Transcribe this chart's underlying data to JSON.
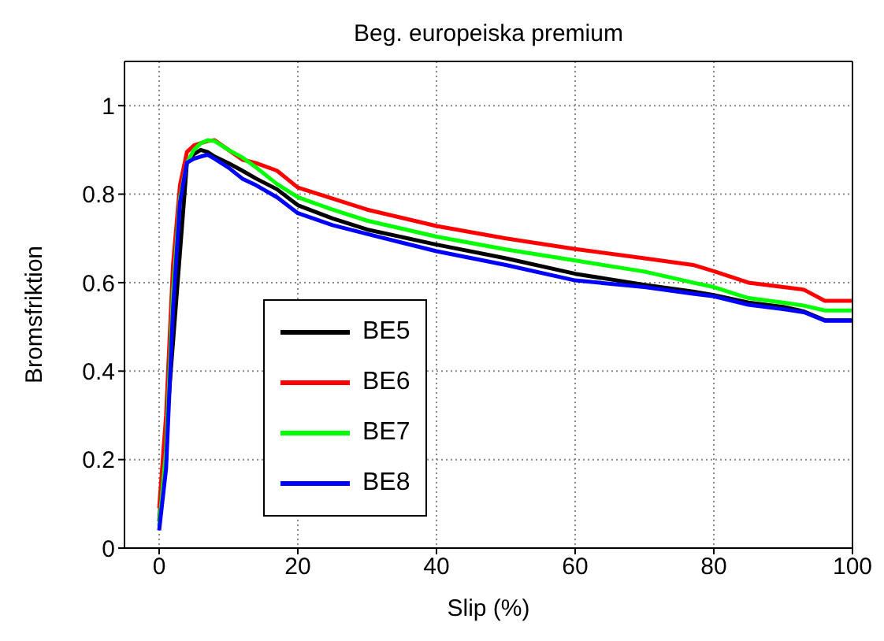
{
  "chart_data": {
    "type": "line",
    "title": "Beg. europeiska premium",
    "xlabel": "Slip (%)",
    "ylabel": "Bromsfriktion",
    "x": [
      0,
      1,
      2,
      3,
      4,
      5,
      6,
      7,
      8,
      10,
      12,
      14,
      17,
      20,
      25,
      30,
      40,
      50,
      60,
      70,
      77,
      80,
      85,
      90,
      93,
      96,
      100
    ],
    "series": [
      {
        "name": "BE5",
        "color": "#000000",
        "values": [
          0.06,
          null,
          null,
          null,
          0.87,
          0.89,
          0.9,
          0.895,
          0.885,
          0.87,
          0.853,
          0.835,
          0.811,
          0.775,
          0.745,
          0.72,
          0.686,
          0.655,
          0.62,
          0.595,
          0.58,
          0.572,
          0.555,
          0.545,
          0.535,
          0.515,
          0.515
        ]
      },
      {
        "name": "BE6",
        "color": "#ff0000",
        "values": [
          0.09,
          0.3,
          0.64,
          0.82,
          0.895,
          0.91,
          0.915,
          0.92,
          0.922,
          0.9,
          0.878,
          0.87,
          0.853,
          0.815,
          0.79,
          0.765,
          0.728,
          0.7,
          0.676,
          0.655,
          0.64,
          0.626,
          0.6,
          0.59,
          0.584,
          0.559,
          0.559
        ]
      },
      {
        "name": "BE7",
        "color": "#00ff00",
        "values": [
          0.05,
          0.22,
          0.58,
          0.79,
          0.87,
          0.9,
          0.915,
          0.922,
          0.92,
          0.9,
          0.883,
          0.86,
          0.823,
          0.793,
          0.765,
          0.74,
          0.704,
          0.675,
          0.65,
          0.625,
          0.6,
          0.59,
          0.565,
          0.555,
          0.548,
          0.537,
          0.537
        ]
      },
      {
        "name": "BE8",
        "color": "#0000ff",
        "values": [
          0.04,
          0.18,
          0.54,
          0.78,
          0.871,
          0.88,
          0.885,
          0.889,
          0.88,
          0.86,
          0.835,
          0.82,
          0.793,
          0.757,
          0.73,
          0.71,
          0.671,
          0.64,
          0.605,
          0.59,
          0.575,
          0.569,
          0.55,
          0.54,
          0.533,
          0.514,
          0.514
        ]
      }
    ],
    "xlim": [
      -5,
      100
    ],
    "xticks": [
      0,
      20,
      40,
      60,
      80,
      100
    ],
    "ylim": [
      0,
      1.1
    ],
    "yticks": [
      0,
      0.2,
      0.4,
      0.6,
      0.8,
      1
    ],
    "grid": true,
    "legend": "bottom left",
    "marker": "none",
    "line_style": "solid"
  }
}
